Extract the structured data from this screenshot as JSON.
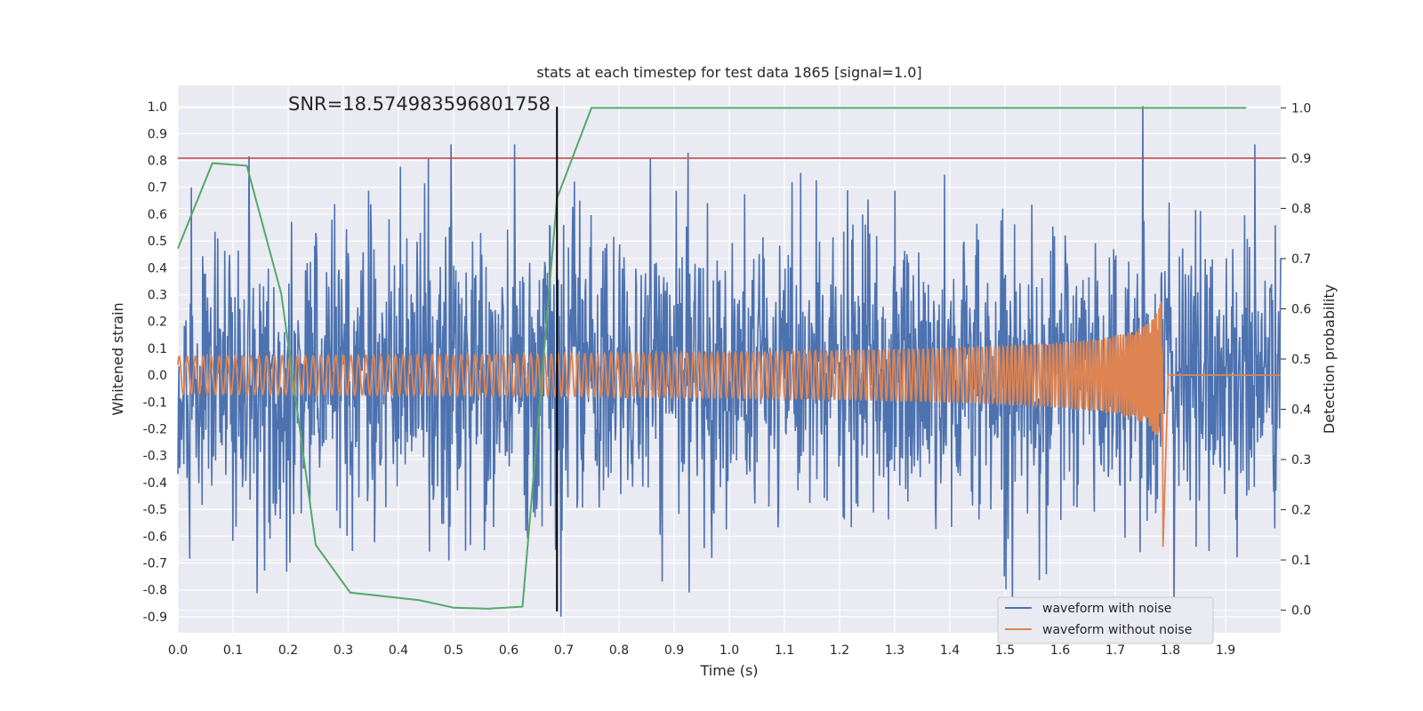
{
  "chart_data": {
    "type": "line",
    "title": "stats at each timestep for test data 1865 [signal=1.0]",
    "xlabel": "Time (s)",
    "ylabel_left": "Whitened strain",
    "ylabel_right": "Detection probability",
    "xlim": [
      0.0,
      2.0
    ],
    "ylim_left": [
      -0.96,
      1.08
    ],
    "ylim_right": [
      -0.045,
      1.045
    ],
    "x_ticks": [
      "0.0",
      "0.1",
      "0.2",
      "0.3",
      "0.4",
      "0.5",
      "0.6",
      "0.7",
      "0.8",
      "0.9",
      "1.0",
      "1.1",
      "1.2",
      "1.3",
      "1.4",
      "1.5",
      "1.6",
      "1.7",
      "1.8",
      "1.9"
    ],
    "y_ticks_left": [
      "-0.9",
      "-0.8",
      "-0.7",
      "-0.6",
      "-0.5",
      "-0.4",
      "-0.3",
      "-0.2",
      "-0.1",
      "0.0",
      "0.1",
      "0.2",
      "0.3",
      "0.4",
      "0.5",
      "0.6",
      "0.7",
      "0.8",
      "0.9",
      "1.0"
    ],
    "y_ticks_right": [
      "0.0",
      "0.1",
      "0.2",
      "0.3",
      "0.4",
      "0.5",
      "0.6",
      "0.7",
      "0.8",
      "0.9",
      "1.0"
    ],
    "grid": true,
    "legend_position": "lower-right",
    "annotation": "SNR=18.574983596801758",
    "series": [
      {
        "name": "waveform with noise",
        "axis": "left",
        "color": "#4c72b0",
        "description_values": {
          "x_start": 0.0,
          "x_end": 2.0,
          "approx_amplitude": 0.45,
          "max_spike": {
            "x": 1.75,
            "y": 1.0
          }
        }
      },
      {
        "name": "waveform without noise",
        "axis": "left",
        "color": "#dd8452",
        "description_values": {
          "x_start": 0.0,
          "x_end": 2.0,
          "chirp_peak": {
            "x": 1.785,
            "y": 0.5
          },
          "chirp_min": {
            "x": 1.79,
            "y": -0.68
          }
        }
      },
      {
        "name": "",
        "axis": "right",
        "color": "#55a868",
        "x": [
          0.0,
          0.0625,
          0.125,
          0.1875,
          0.25,
          0.3125,
          0.4375,
          0.5,
          0.5625,
          0.625,
          0.6875,
          0.75,
          1.9375
        ],
        "y": [
          0.72,
          0.89,
          0.885,
          0.63,
          0.13,
          0.035,
          0.02,
          0.005,
          0.003,
          0.007,
          0.82,
          1.0,
          1.0
        ]
      }
    ],
    "threshold": {
      "axis": "right",
      "value": 0.9,
      "color": "#c44e52"
    },
    "marker_line": {
      "x": 0.6875,
      "y_range": [
        -0.88,
        1.0
      ],
      "color": "#000000"
    },
    "legend": [
      "waveform with noise",
      "waveform without noise"
    ]
  }
}
